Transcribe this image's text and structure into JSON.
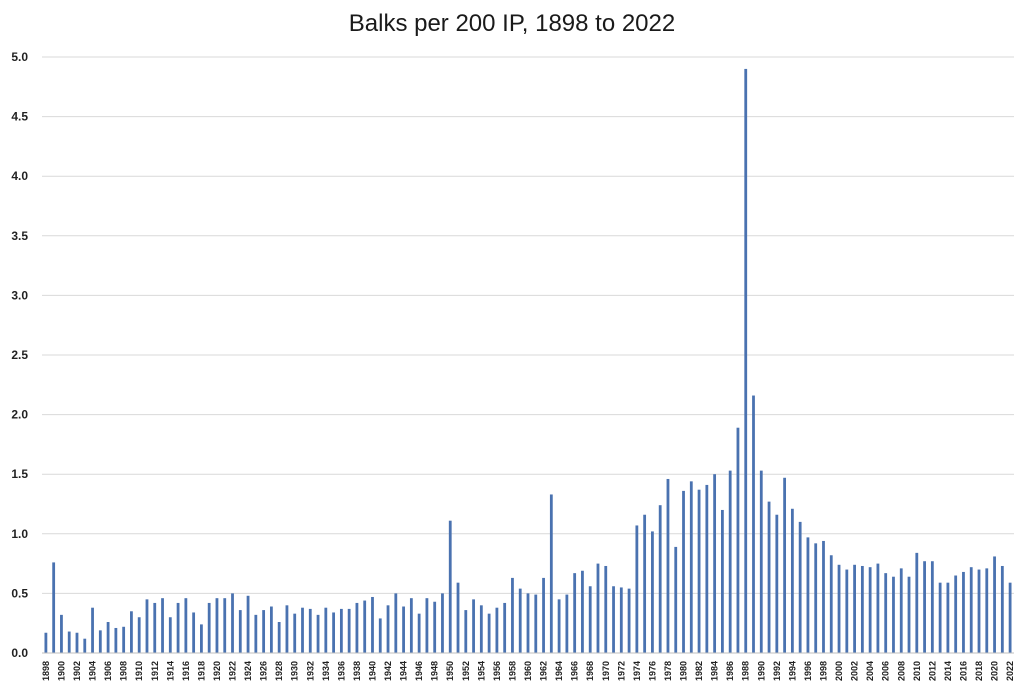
{
  "chart_data": {
    "type": "bar",
    "title": "Balks per 200 IP, 1898 to 2022",
    "xlabel": "",
    "ylabel": "",
    "ylim": [
      0,
      5.0
    ],
    "yticks": [
      "0.0",
      "0.5",
      "1.0",
      "1.5",
      "2.0",
      "2.5",
      "3.0",
      "3.5",
      "4.0",
      "4.5",
      "5.0"
    ],
    "grid": "horizontal",
    "legend": "none",
    "bar_color": "#4a72b0",
    "grid_color": "#d9d9d9",
    "categories": [
      "1898",
      "1899",
      "1900",
      "1901",
      "1902",
      "1903",
      "1904",
      "1905",
      "1906",
      "1907",
      "1908",
      "1909",
      "1910",
      "1911",
      "1912",
      "1913",
      "1914",
      "1915",
      "1916",
      "1917",
      "1918",
      "1919",
      "1920",
      "1921",
      "1922",
      "1923",
      "1924",
      "1925",
      "1926",
      "1927",
      "1928",
      "1929",
      "1930",
      "1931",
      "1932",
      "1933",
      "1934",
      "1935",
      "1936",
      "1937",
      "1938",
      "1939",
      "1940",
      "1941",
      "1942",
      "1943",
      "1944",
      "1945",
      "1946",
      "1947",
      "1948",
      "1949",
      "1950",
      "1951",
      "1952",
      "1953",
      "1954",
      "1955",
      "1956",
      "1957",
      "1958",
      "1959",
      "1960",
      "1961",
      "1962",
      "1963",
      "1964",
      "1965",
      "1966",
      "1967",
      "1968",
      "1969",
      "1970",
      "1971",
      "1972",
      "1973",
      "1974",
      "1975",
      "1976",
      "1977",
      "1978",
      "1979",
      "1980",
      "1981",
      "1982",
      "1983",
      "1984",
      "1985",
      "1986",
      "1987",
      "1988",
      "1989",
      "1990",
      "1991",
      "1992",
      "1993",
      "1994",
      "1995",
      "1996",
      "1997",
      "1998",
      "1999",
      "2000",
      "2001",
      "2002",
      "2003",
      "2004",
      "2005",
      "2006",
      "2007",
      "2008",
      "2009",
      "2010",
      "2011",
      "2012",
      "2013",
      "2014",
      "2015",
      "2016",
      "2017",
      "2018",
      "2019",
      "2020",
      "2021",
      "2022"
    ],
    "xtick_labels": [
      "1898",
      "1900",
      "1902",
      "1904",
      "1906",
      "1908",
      "1910",
      "1912",
      "1914",
      "1916",
      "1918",
      "1920",
      "1922",
      "1924",
      "1926",
      "1928",
      "1930",
      "1932",
      "1934",
      "1936",
      "1938",
      "1940",
      "1942",
      "1944",
      "1946",
      "1948",
      "1950",
      "1952",
      "1954",
      "1956",
      "1958",
      "1960",
      "1962",
      "1964",
      "1966",
      "1968",
      "1970",
      "1972",
      "1974",
      "1976",
      "1978",
      "1980",
      "1982",
      "1984",
      "1986",
      "1988",
      "1990",
      "1992",
      "1994",
      "1996",
      "1998",
      "2000",
      "2002",
      "2004",
      "2006",
      "2008",
      "2010",
      "2012",
      "2014",
      "2016",
      "2018",
      "2020",
      "2022"
    ],
    "values": [
      0.17,
      0.76,
      0.32,
      0.18,
      0.17,
      0.12,
      0.38,
      0.19,
      0.26,
      0.21,
      0.22,
      0.35,
      0.3,
      0.45,
      0.42,
      0.46,
      0.3,
      0.42,
      0.46,
      0.34,
      0.24,
      0.42,
      0.46,
      0.46,
      0.5,
      0.36,
      0.48,
      0.32,
      0.36,
      0.39,
      0.26,
      0.4,
      0.33,
      0.38,
      0.37,
      0.32,
      0.38,
      0.34,
      0.37,
      0.37,
      0.42,
      0.44,
      0.47,
      0.29,
      0.4,
      0.5,
      0.39,
      0.46,
      0.33,
      0.46,
      0.43,
      0.5,
      1.11,
      0.59,
      0.36,
      0.45,
      0.4,
      0.33,
      0.38,
      0.42,
      0.63,
      0.54,
      0.5,
      0.49,
      0.63,
      1.33,
      0.45,
      0.49,
      0.67,
      0.69,
      0.56,
      0.75,
      0.73,
      0.56,
      0.55,
      0.54,
      1.07,
      1.16,
      1.02,
      1.24,
      1.46,
      0.89,
      1.36,
      1.44,
      1.37,
      1.41,
      1.5,
      1.2,
      1.53,
      1.89,
      4.9,
      2.16,
      1.53,
      1.27,
      1.16,
      1.47,
      1.21,
      1.1,
      0.97,
      0.92,
      0.94,
      0.82,
      0.74,
      0.7,
      0.74,
      0.73,
      0.72,
      0.75,
      0.67,
      0.64,
      0.71,
      0.64,
      0.84,
      0.77,
      0.77,
      0.59,
      0.59,
      0.65,
      0.68,
      0.72,
      0.7,
      0.71,
      0.81,
      0.73,
      0.59
    ]
  }
}
